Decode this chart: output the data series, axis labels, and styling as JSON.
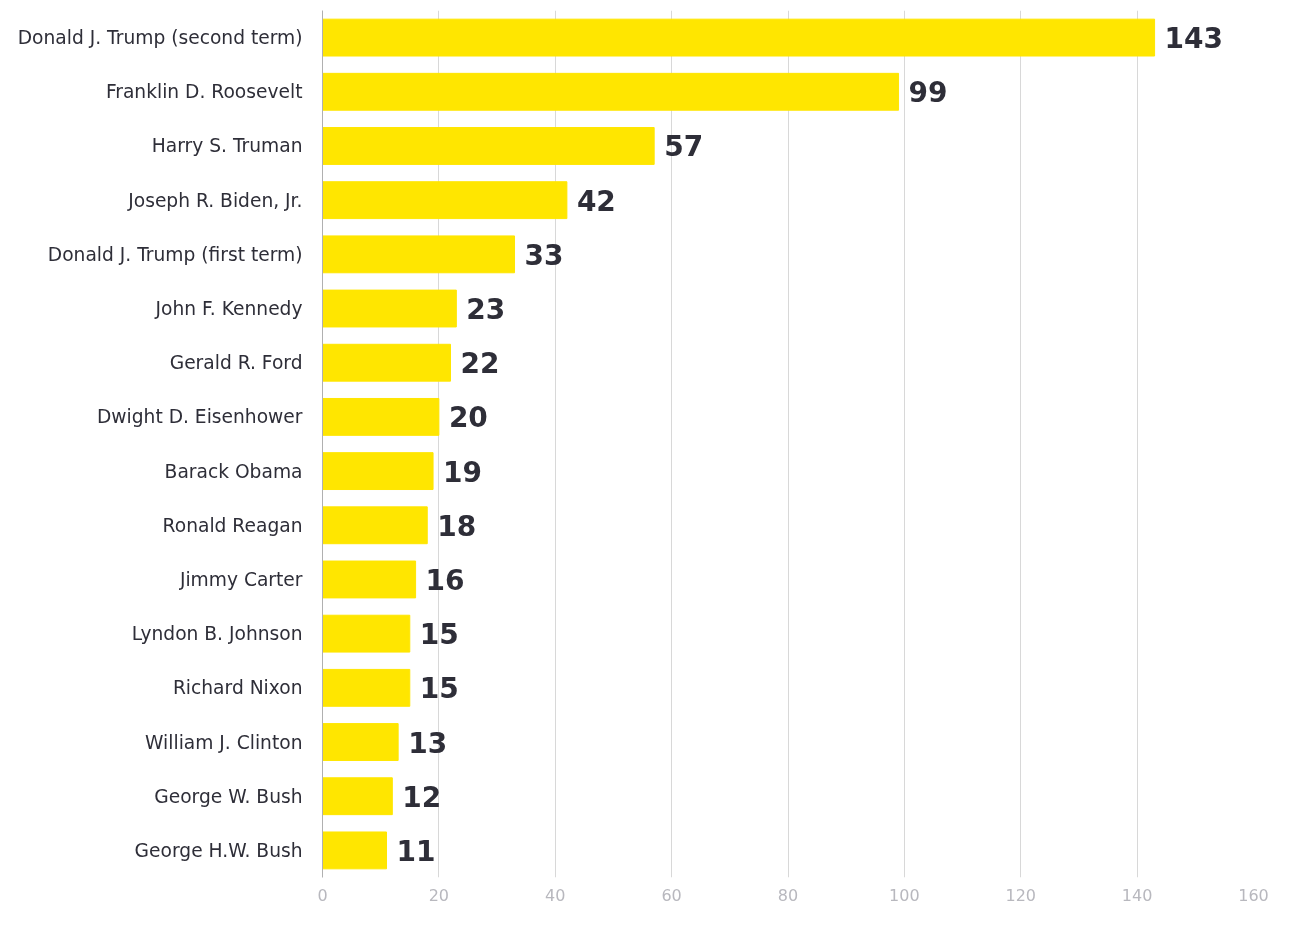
{
  "chart_data": {
    "type": "bar",
    "orientation": "horizontal",
    "categories": [
      "Donald J. Trump (second term)",
      "Franklin D. Roosevelt",
      "Harry S. Truman",
      "Joseph R. Biden, Jr.",
      "Donald J. Trump (first term)",
      "John F. Kennedy",
      "Gerald R. Ford",
      "Dwight D. Eisenhower",
      "Barack Obama",
      "Ronald Reagan",
      "Jimmy Carter",
      "Lyndon B. Johnson",
      "Richard Nixon",
      "William J. Clinton",
      "George W. Bush",
      "George H.W. Bush"
    ],
    "values": [
      143,
      99,
      57,
      42,
      33,
      23,
      22,
      20,
      19,
      18,
      16,
      15,
      15,
      13,
      12,
      11
    ],
    "color": "#ffe600",
    "xlim": [
      0,
      160
    ],
    "xticks": [
      0,
      20,
      40,
      60,
      80,
      100,
      120,
      140,
      160
    ],
    "grid": "x",
    "data_labels": true
  }
}
